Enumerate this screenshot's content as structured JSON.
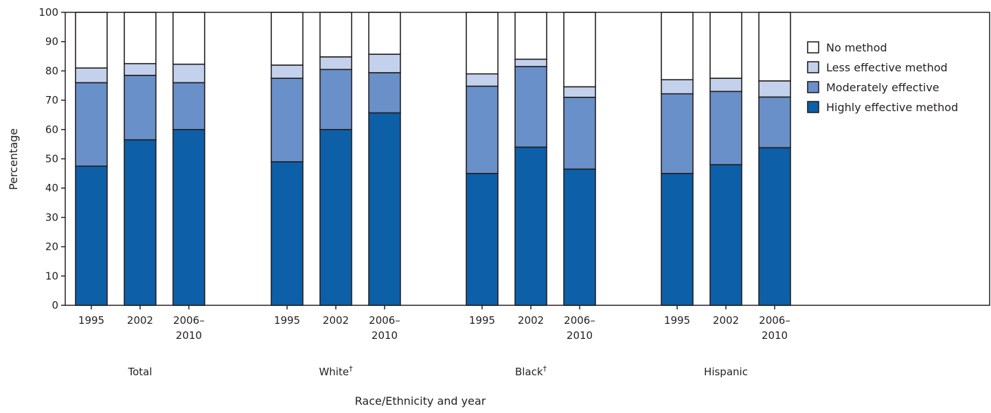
{
  "chart_data": {
    "type": "bar",
    "stacked": true,
    "ylabel": "Percentage",
    "xlabel": "Race/Ethnicity and year",
    "ylim": [
      0,
      100
    ],
    "yticks": [
      0,
      10,
      20,
      30,
      40,
      50,
      60,
      70,
      80,
      90,
      100
    ],
    "grid": false,
    "legend_position": "top-right",
    "groups": [
      {
        "label": "Total",
        "dagger": "",
        "bars": [
          {
            "year": "1995",
            "highly": 47.5,
            "moderately": 28.5,
            "less": 5.0,
            "none": 19.0
          },
          {
            "year": "2002",
            "highly": 56.5,
            "moderately": 22.0,
            "less": 4.0,
            "none": 17.5
          },
          {
            "year": "2006–2010",
            "highly": 60.0,
            "moderately": 16.0,
            "less": 6.3,
            "none": 17.7
          }
        ]
      },
      {
        "label": "White",
        "dagger": "†",
        "bars": [
          {
            "year": "1995",
            "highly": 49.0,
            "moderately": 28.5,
            "less": 4.5,
            "none": 18.0
          },
          {
            "year": "2002",
            "highly": 60.0,
            "moderately": 20.5,
            "less": 4.3,
            "none": 15.2
          },
          {
            "year": "2006–2010",
            "highly": 65.7,
            "moderately": 13.7,
            "less": 6.3,
            "none": 14.3
          }
        ]
      },
      {
        "label": "Black",
        "dagger": "†",
        "bars": [
          {
            "year": "1995",
            "highly": 45.0,
            "moderately": 29.8,
            "less": 4.2,
            "none": 21.0
          },
          {
            "year": "2002",
            "highly": 54.0,
            "moderately": 27.5,
            "less": 2.5,
            "none": 16.0
          },
          {
            "year": "2006–2010",
            "highly": 46.5,
            "moderately": 24.5,
            "less": 3.6,
            "none": 25.4
          }
        ]
      },
      {
        "label": "Hispanic",
        "dagger": "",
        "bars": [
          {
            "year": "1995",
            "highly": 45.0,
            "moderately": 27.2,
            "less": 4.8,
            "none": 23.0
          },
          {
            "year": "2002",
            "highly": 48.0,
            "moderately": 25.0,
            "less": 4.5,
            "none": 22.5
          },
          {
            "year": "2006–2010",
            "highly": 53.8,
            "moderately": 17.3,
            "less": 5.5,
            "none": 23.4
          }
        ]
      }
    ],
    "series": [
      {
        "key": "highly",
        "name": "Highly effective method",
        "color": "#0d5fa8"
      },
      {
        "key": "moderately",
        "name": "Moderately effective",
        "color": "#6990c8"
      },
      {
        "key": "less",
        "name": "Less effective method",
        "color": "#c4d1ec"
      },
      {
        "key": "none",
        "name": "No method",
        "color": "#ffffff"
      }
    ],
    "legend_order": [
      "none",
      "less",
      "moderately",
      "highly"
    ]
  }
}
